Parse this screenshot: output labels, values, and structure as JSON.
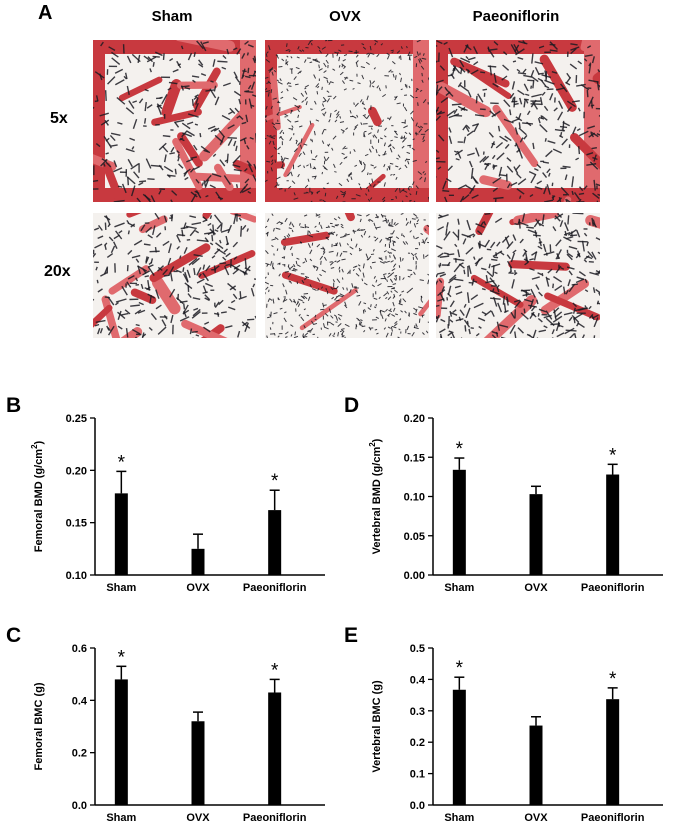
{
  "figure": {
    "panel_a_letter": "A",
    "columns": [
      "Sham",
      "OVX",
      "Paeoniflorin"
    ],
    "rows": [
      "5x",
      "20x"
    ],
    "colors": {
      "bone_red": "#c8393f",
      "bone_pink": "#e06a6e",
      "marrow_white": "#f4f1ee",
      "trabecula_black": "#1b1b22",
      "bar": "#000000"
    }
  },
  "chart_data": [
    {
      "panel": "B",
      "type": "bar",
      "categories": [
        "Sham",
        "OVX",
        "Paeoniflorin"
      ],
      "values": [
        0.178,
        0.125,
        0.162
      ],
      "errors": [
        0.021,
        0.014,
        0.019
      ],
      "significance": [
        "*",
        "",
        "*"
      ],
      "ylabel_main": "Femoral BMD (g/cm",
      "ylabel_sup": "2",
      "ylabel_end": ")",
      "ylim": [
        0.1,
        0.25
      ],
      "yticks": [
        "0.10",
        "0.15",
        "0.20",
        "0.25"
      ],
      "ytick_values": [
        0.1,
        0.15,
        0.2,
        0.25
      ]
    },
    {
      "panel": "D",
      "type": "bar",
      "categories": [
        "Sham",
        "OVX",
        "Paeoniflorin"
      ],
      "values": [
        0.134,
        0.103,
        0.128
      ],
      "errors": [
        0.015,
        0.01,
        0.013
      ],
      "significance": [
        "*",
        "",
        "*"
      ],
      "ylabel_main": "Vertebral BMD (g/cm",
      "ylabel_sup": "2",
      "ylabel_end": ")",
      "ylim": [
        0.0,
        0.2
      ],
      "yticks": [
        "0.00",
        "0.05",
        "0.10",
        "0.15",
        "0.20"
      ],
      "ytick_values": [
        0.0,
        0.05,
        0.1,
        0.15,
        0.2
      ]
    },
    {
      "panel": "C",
      "type": "bar",
      "categories": [
        "Sham",
        "OVX",
        "Paeoniflorin"
      ],
      "values": [
        0.48,
        0.32,
        0.43
      ],
      "errors": [
        0.05,
        0.035,
        0.05
      ],
      "significance": [
        "*",
        "",
        "*"
      ],
      "ylabel_main": "Femoral BMC (g)",
      "ylabel_sup": "",
      "ylabel_end": "",
      "ylim": [
        0.0,
        0.6
      ],
      "yticks": [
        "0.0",
        "0.2",
        "0.4",
        "0.6"
      ],
      "ytick_values": [
        0.0,
        0.2,
        0.4,
        0.6
      ]
    },
    {
      "panel": "E",
      "type": "bar",
      "categories": [
        "Sham",
        "OVX",
        "Paeoniflorin"
      ],
      "values": [
        0.367,
        0.253,
        0.337
      ],
      "errors": [
        0.04,
        0.028,
        0.036
      ],
      "significance": [
        "*",
        "",
        "*"
      ],
      "ylabel_main": "Vertebral BMC (g)",
      "ylabel_sup": "",
      "ylabel_end": "",
      "ylim": [
        0.0,
        0.5
      ],
      "yticks": [
        "0.0",
        "0.1",
        "0.2",
        "0.3",
        "0.4",
        "0.5"
      ],
      "ytick_values": [
        0.0,
        0.1,
        0.2,
        0.3,
        0.4,
        0.5
      ]
    }
  ]
}
